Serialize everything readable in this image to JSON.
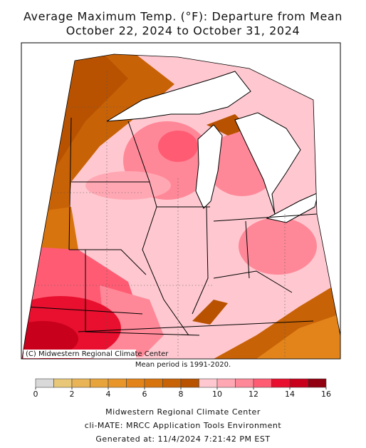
{
  "header": {
    "title_line1": "Average Maximum Temp. (°F): Departure from Mean",
    "title_line2": "October 22, 2024 to October 31, 2024"
  },
  "map": {
    "credit": "(C) Midwestern Regional Climate Center",
    "note": "Mean period is 1991-2020."
  },
  "legend": {
    "bounds": [
      0,
      1,
      2,
      3,
      4,
      5,
      6,
      7,
      8,
      9,
      10,
      11,
      12,
      13,
      14,
      15,
      16
    ],
    "colors": [
      "#d9d9d9",
      "#e8c878",
      "#e8b456",
      "#e8a43c",
      "#e8962a",
      "#e2841a",
      "#d8740e",
      "#c86206",
      "#b85200",
      "#ffc8d0",
      "#ffa8b4",
      "#ff8898",
      "#ff5c74",
      "#e8102e",
      "#c8001c",
      "#900010"
    ],
    "ticks": [
      0,
      2,
      4,
      6,
      8,
      10,
      12,
      14,
      16
    ]
  },
  "footer": {
    "lines": [
      "Midwestern Regional Climate Center",
      "cli-MATE: MRCC Application Tools Environment",
      "Generated at: 11/4/2024 7:21:42 PM EST"
    ]
  }
}
